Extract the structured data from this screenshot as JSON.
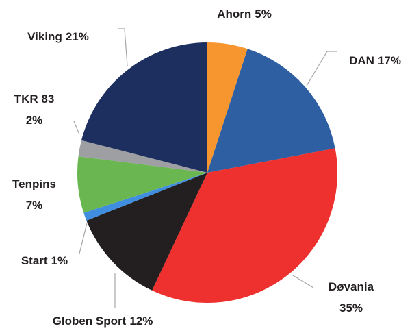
{
  "chart_data": {
    "type": "pie",
    "categories": [
      "Ahorn",
      "DAN",
      "Døvania",
      "Globen Sport",
      "Start",
      "Tenpins",
      "TKR 83",
      "Viking"
    ],
    "values": [
      5,
      17,
      35,
      12,
      1,
      7,
      2,
      21
    ],
    "value_labels": [
      "5%",
      "17%",
      "35%",
      "12%",
      "1%",
      "7%",
      "2%",
      "21%"
    ],
    "colors": [
      "#f7962e",
      "#2e5fa3",
      "#ee302e",
      "#231f20",
      "#3f8ee0",
      "#6ab651",
      "#9d9fa2",
      "#1d2f5e"
    ]
  }
}
